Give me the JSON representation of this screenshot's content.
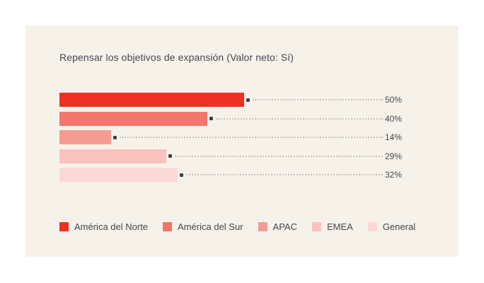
{
  "page": {
    "background": "#ffffff",
    "panel_background": "#f6f2ea"
  },
  "chart_data": {
    "type": "bar",
    "orientation": "horizontal",
    "title": "Repensar los objetivos de expansión (Valor neto: Sí)",
    "categories": [
      "América del Norte",
      "América del Sur",
      "APAC",
      "EMEA",
      "General"
    ],
    "values": [
      50,
      40,
      14,
      29,
      32
    ],
    "value_labels": [
      "50%",
      "40%",
      "14%",
      "29%",
      "32%"
    ],
    "colors": [
      "#ee3124",
      "#f3756b",
      "#f69b94",
      "#f9c2be",
      "#fbd9d6"
    ],
    "xlim": [
      0,
      100
    ],
    "grid": false,
    "legend_position": "bottom",
    "legend": [
      {
        "label": "América del Norte",
        "color": "#ee3124"
      },
      {
        "label": "América del Sur",
        "color": "#f3756b"
      },
      {
        "label": "APAC",
        "color": "#f69b94"
      },
      {
        "label": "EMEA",
        "color": "#f9c2be"
      },
      {
        "label": "General",
        "color": "#fbd9d6"
      }
    ],
    "leader_line_color": "#c8c3ba",
    "leader_dot_color": "#3d3d45",
    "text_color": "#45454d"
  }
}
